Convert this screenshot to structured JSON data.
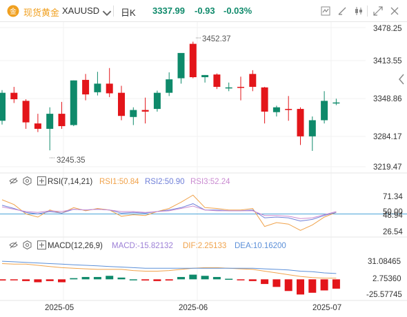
{
  "header": {
    "brand": "现货黄金",
    "symbol": "XAUUSD",
    "interval": "日K",
    "last_price": "3337.99",
    "change": "-0.93",
    "change_pct": "-0.03%"
  },
  "colors": {
    "up": "#0f8a6b",
    "down": "#e3151a",
    "brand": "#f0a020",
    "rsi1": "#f0a24a",
    "rsi2": "#6f7fd8",
    "rsi3": "#c98ad0",
    "dif": "#f0a24a",
    "dea": "#5b8fd8"
  },
  "price_panel": {
    "ticks": [
      "3478.25",
      "3413.55",
      "3348.86",
      "3284.17",
      "3219.47"
    ],
    "high_label": "3452.37",
    "low_label": "3245.35"
  },
  "rsi_panel": {
    "title": "RSI(7,14,21)",
    "rsi1_label": "RSI1:50.84",
    "rsi2_label": "RSI2:50.90",
    "rsi3_label": "RSI3:52.24",
    "ticks": [
      "71.34",
      "50.00",
      "48.94",
      "26.54"
    ]
  },
  "macd_panel": {
    "title": "MACD(12,26,9)",
    "macd_label": "MACD:-15.82132",
    "dif_label": "DIF:2.25133",
    "dea_label": "DEA:10.16200",
    "ticks": [
      "31.08465",
      "2.75360",
      "-25.57745"
    ]
  },
  "x_axis": {
    "labels": [
      "2025-05",
      "2025-06",
      "2025-07"
    ]
  },
  "chart_data": [
    {
      "type": "candlestick",
      "title": "",
      "ylim": [
        3200,
        3490
      ],
      "candles": [
        {
          "o": 3305,
          "h": 3362,
          "l": 3298,
          "c": 3357
        },
        {
          "o": 3357,
          "h": 3368,
          "l": 3338,
          "c": 3345
        },
        {
          "o": 3342,
          "h": 3345,
          "l": 3290,
          "c": 3302
        },
        {
          "o": 3300,
          "h": 3318,
          "l": 3284,
          "c": 3290
        },
        {
          "o": 3290,
          "h": 3330,
          "l": 3250,
          "c": 3318
        },
        {
          "o": 3318,
          "h": 3340,
          "l": 3290,
          "c": 3295
        },
        {
          "o": 3297,
          "h": 3380,
          "l": 3295,
          "c": 3380
        },
        {
          "o": 3381,
          "h": 3392,
          "l": 3343,
          "c": 3354
        },
        {
          "o": 3358,
          "h": 3396,
          "l": 3352,
          "c": 3374
        },
        {
          "o": 3374,
          "h": 3403,
          "l": 3349,
          "c": 3356
        },
        {
          "o": 3357,
          "h": 3370,
          "l": 3306,
          "c": 3314
        },
        {
          "o": 3312,
          "h": 3330,
          "l": 3297,
          "c": 3325
        },
        {
          "o": 3325,
          "h": 3348,
          "l": 3300,
          "c": 3322
        },
        {
          "o": 3327,
          "h": 3361,
          "l": 3322,
          "c": 3357
        },
        {
          "o": 3357,
          "h": 3395,
          "l": 3351,
          "c": 3382
        },
        {
          "o": 3384,
          "h": 3430,
          "l": 3374,
          "c": 3431
        },
        {
          "o": 3448,
          "h": 3452,
          "l": 3384,
          "c": 3386
        },
        {
          "o": 3386,
          "h": 3390,
          "l": 3376,
          "c": 3390
        },
        {
          "o": 3391,
          "h": 3393,
          "l": 3364,
          "c": 3368
        },
        {
          "o": 3366,
          "h": 3376,
          "l": 3360,
          "c": 3367
        },
        {
          "o": 3368,
          "h": 3387,
          "l": 3343,
          "c": 3367
        },
        {
          "o": 3392,
          "h": 3399,
          "l": 3360,
          "c": 3368
        },
        {
          "o": 3367,
          "h": 3368,
          "l": 3300,
          "c": 3322
        },
        {
          "o": 3321,
          "h": 3333,
          "l": 3313,
          "c": 3330
        },
        {
          "o": 3327,
          "h": 3351,
          "l": 3305,
          "c": 3325
        },
        {
          "o": 3327,
          "h": 3330,
          "l": 3260,
          "c": 3276
        },
        {
          "o": 3276,
          "h": 3313,
          "l": 3249,
          "c": 3306
        },
        {
          "o": 3306,
          "h": 3360,
          "l": 3300,
          "c": 3342
        },
        {
          "o": 3338,
          "h": 3346,
          "l": 3334,
          "c": 3339
        }
      ]
    },
    {
      "type": "line",
      "title": "RSI(7,14,21)",
      "ylim": [
        20,
        80
      ],
      "series": [
        {
          "name": "RSI1",
          "values": [
            67,
            61,
            49,
            45,
            54,
            50,
            57,
            53,
            56,
            54,
            46,
            48,
            47,
            52,
            56,
            64,
            73,
            57,
            56,
            54,
            54,
            56,
            33,
            38,
            36,
            28,
            35,
            45,
            51
          ]
        },
        {
          "name": "RSI2",
          "values": [
            60,
            56,
            51,
            49,
            52,
            50,
            55,
            54,
            55,
            54,
            50,
            51,
            50,
            52,
            54,
            57,
            62,
            54,
            54,
            53,
            53,
            54,
            44,
            45,
            44,
            40,
            42,
            47,
            51
          ]
        },
        {
          "name": "RSI3",
          "values": [
            58,
            55,
            52,
            51,
            53,
            52,
            55,
            54,
            55,
            54,
            52,
            52,
            51,
            52,
            53,
            56,
            59,
            54,
            53,
            53,
            53,
            53,
            47,
            47,
            46,
            43,
            44,
            48,
            52
          ]
        }
      ]
    },
    {
      "type": "bar+line",
      "title": "MACD(12,26,9)",
      "ylim": [
        -38,
        42
      ],
      "series": [
        {
          "name": "MACD",
          "values": [
            -2,
            -1,
            -3,
            -5,
            -3,
            -5,
            2,
            4,
            4,
            6,
            3,
            0,
            -2,
            -3,
            -2,
            4,
            8,
            6,
            4,
            1,
            -1,
            -3,
            -8,
            -13,
            -20,
            -26,
            -23,
            -19,
            -16
          ]
        },
        {
          "name": "DIF",
          "values": [
            27,
            26,
            26,
            24,
            22,
            20,
            19,
            18,
            17,
            17,
            17,
            15,
            14,
            14,
            15,
            17,
            19,
            20,
            20,
            19,
            18,
            17,
            14,
            11,
            8,
            5,
            3,
            2,
            2
          ]
        },
        {
          "name": "DEA",
          "values": [
            31,
            30,
            29,
            28,
            27,
            26,
            25,
            24,
            23,
            22,
            21,
            20,
            19,
            19,
            19,
            19,
            19,
            19,
            19,
            19,
            19,
            19,
            18,
            17,
            16,
            14,
            13,
            11,
            10
          ]
        }
      ]
    }
  ]
}
